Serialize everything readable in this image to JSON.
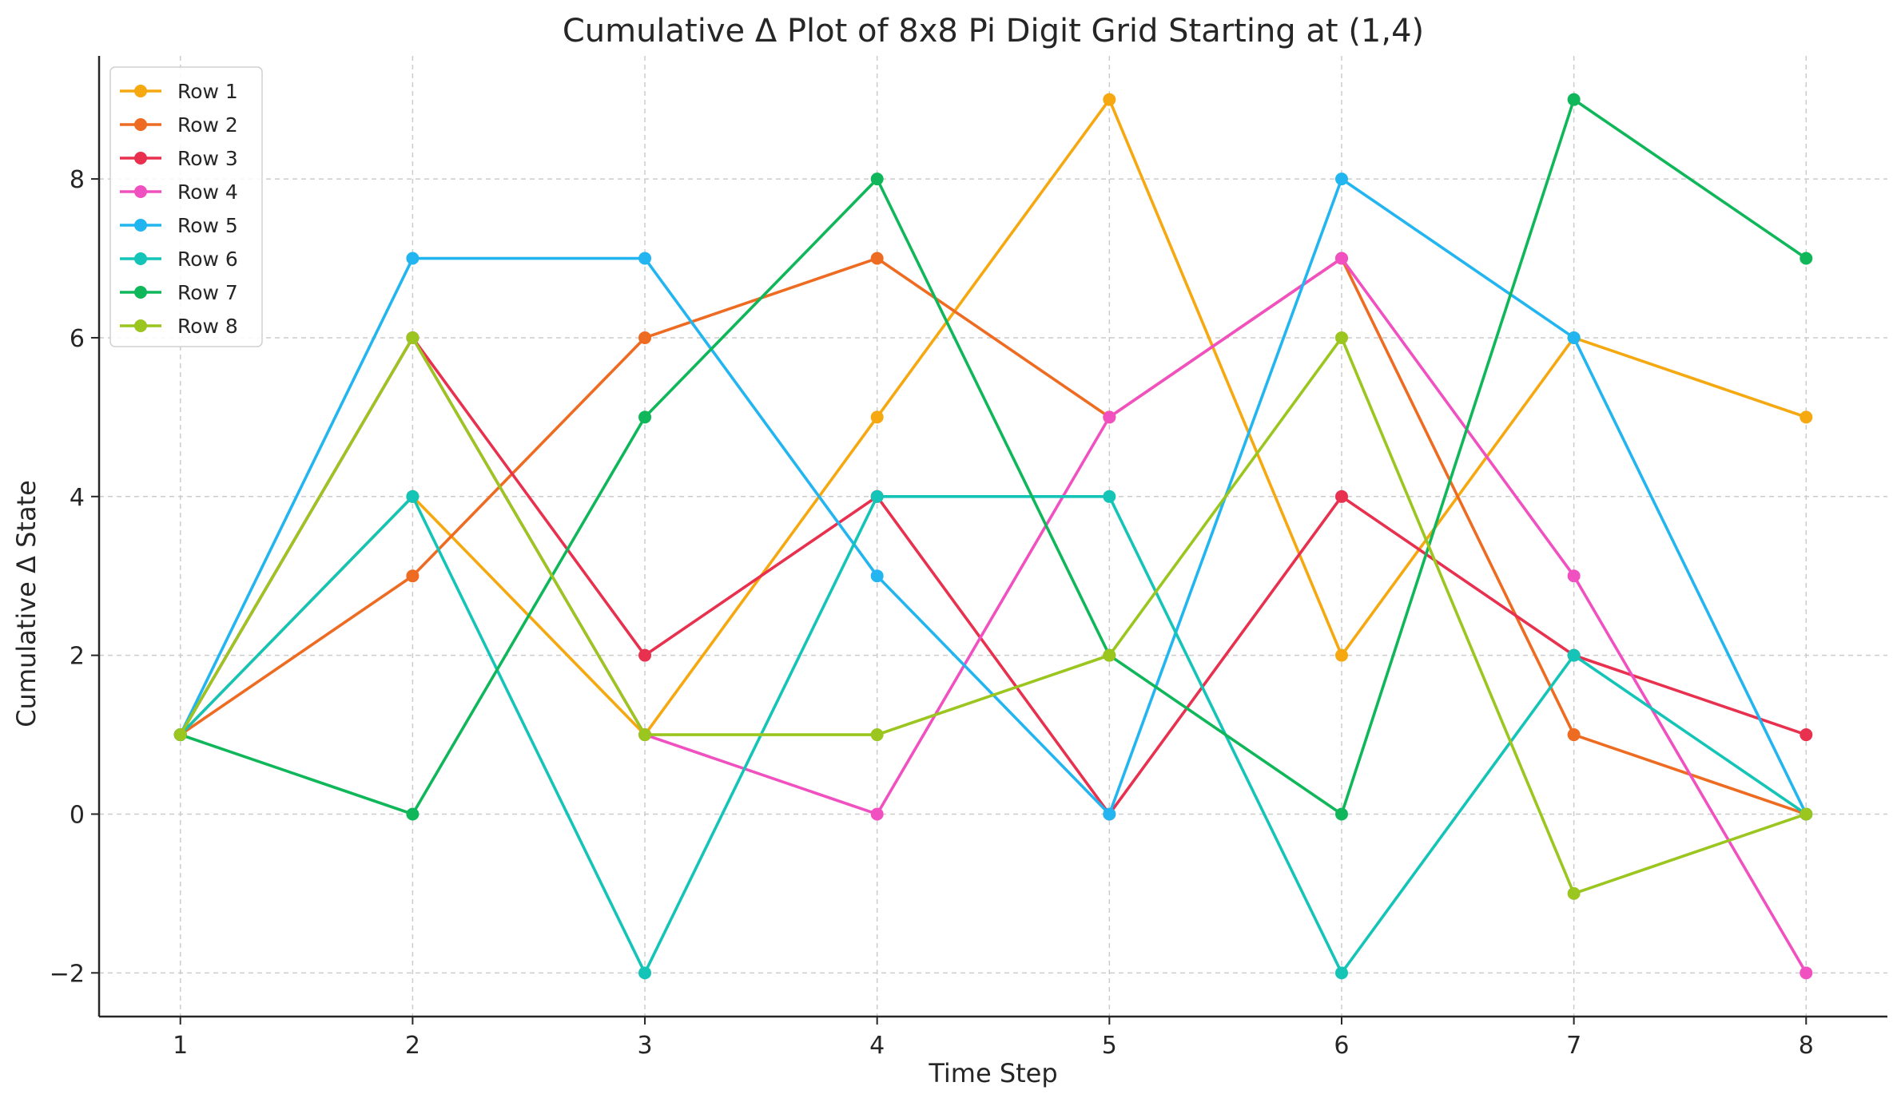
{
  "chart_data": {
    "type": "line",
    "title": "Cumulative Δ Plot of 8x8 Pi Digit Grid Starting at (1,4)",
    "xlabel": "Time Step",
    "ylabel": "Cumulative Δ State",
    "x": [
      1,
      2,
      3,
      4,
      5,
      6,
      7,
      8
    ],
    "x_ticks": [
      "1",
      "2",
      "3",
      "4",
      "5",
      "6",
      "7",
      "8"
    ],
    "y_ticks": [
      "−2",
      "0",
      "2",
      "4",
      "6",
      "8"
    ],
    "y_tick_values": [
      -2,
      0,
      2,
      4,
      6,
      8
    ],
    "xlim": [
      0.65,
      8.35
    ],
    "ylim": [
      -2.55,
      9.55
    ],
    "grid": true,
    "legend_position": "top-left",
    "series": [
      {
        "name": "Row 1",
        "color": "#F5A80F",
        "values": [
          1,
          4,
          1,
          5,
          9,
          2,
          6,
          5
        ]
      },
      {
        "name": "Row 2",
        "color": "#EE6B22",
        "values": [
          1,
          3,
          6,
          7,
          5,
          7,
          1,
          0
        ]
      },
      {
        "name": "Row 3",
        "color": "#E8304F",
        "values": [
          1,
          6,
          2,
          4,
          0,
          4,
          2,
          1
        ]
      },
      {
        "name": "Row 4",
        "color": "#F050C0",
        "values": [
          1,
          6,
          1,
          0,
          5,
          7,
          3,
          -2
        ]
      },
      {
        "name": "Row 5",
        "color": "#22B5F0",
        "values": [
          1,
          7,
          7,
          3,
          0,
          8,
          6,
          0
        ]
      },
      {
        "name": "Row 6",
        "color": "#14C4B7",
        "values": [
          1,
          4,
          -2,
          4,
          4,
          -2,
          2,
          0
        ]
      },
      {
        "name": "Row 7",
        "color": "#10B75A",
        "values": [
          1,
          0,
          5,
          8,
          2,
          0,
          9,
          7
        ]
      },
      {
        "name": "Row 8",
        "color": "#9BC51F",
        "values": [
          1,
          6,
          1,
          1,
          2,
          6,
          -1,
          0
        ]
      }
    ]
  }
}
